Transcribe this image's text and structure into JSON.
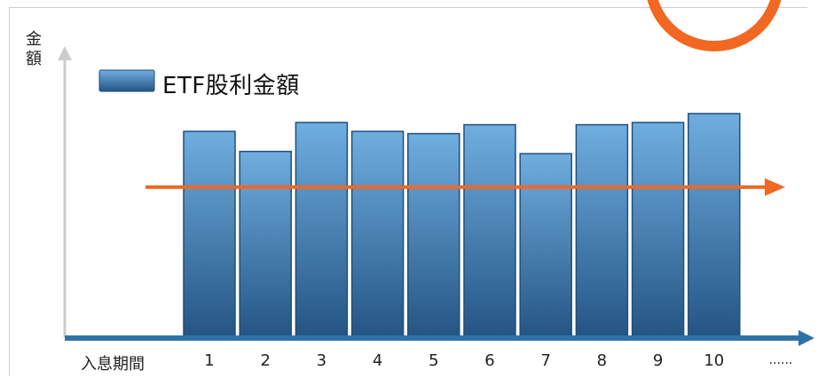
{
  "chart_data": {
    "type": "bar",
    "ylabel": [
      "金",
      "額"
    ],
    "xlabel": "入息期間",
    "legend": {
      "label": "ETF股利金額",
      "placement": "top-left"
    },
    "categories": [
      "1",
      "2",
      "3",
      "4",
      "5",
      "6",
      "7",
      "8",
      "9",
      "10"
    ],
    "trailing_tick": "......",
    "values": [
      92,
      83,
      96,
      92,
      91,
      95,
      82,
      95,
      96,
      100
    ],
    "ylim": [
      0,
      100
    ],
    "trend_line": {
      "type": "horizontal-arrow",
      "value": 67,
      "color": "#f26722"
    },
    "grid": false,
    "colors": {
      "bar_top": "#6faee0",
      "bar_bottom": "#245584",
      "bar_stroke": "#1f4f7d",
      "axis": "#2e73a6",
      "trend": "#f26722",
      "circle": "#f26722"
    }
  }
}
